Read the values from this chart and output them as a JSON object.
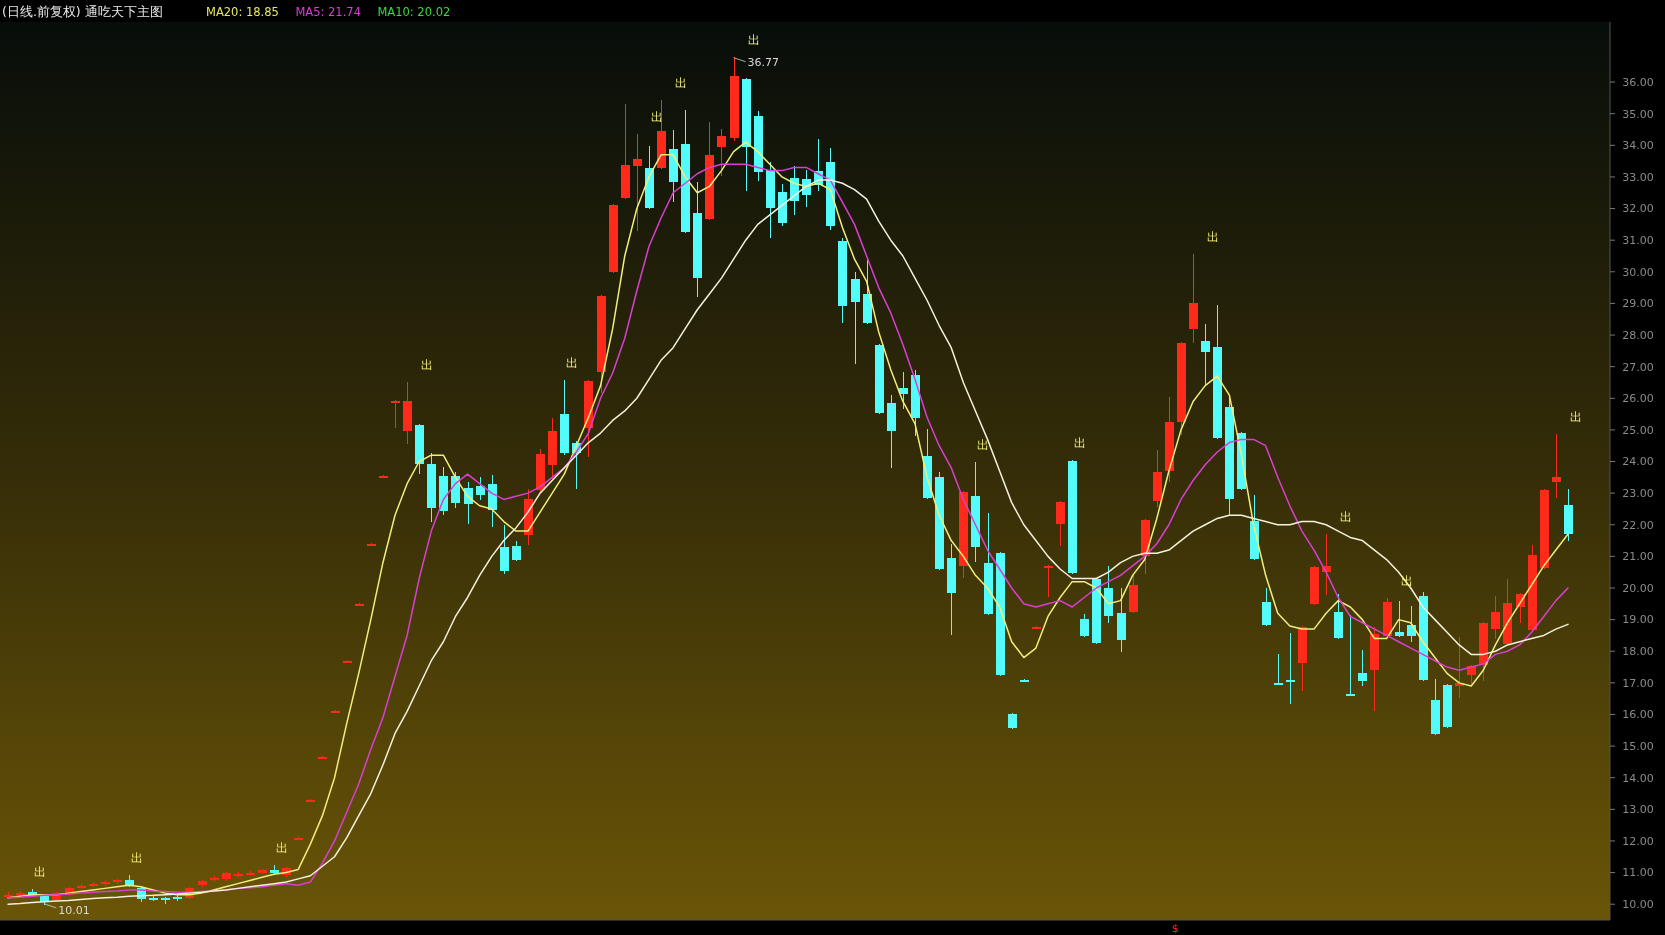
{
  "chart_data": {
    "type": "candlestick",
    "title": "(日线.前复权) 通吃天下主图",
    "categories": [
      null,
      null,
      null,
      null,
      null,
      null,
      null,
      null,
      null,
      null,
      null,
      null,
      null,
      null,
      null,
      null,
      null,
      null,
      null,
      null,
      null,
      null,
      null,
      null,
      null,
      null,
      null,
      null,
      null,
      null,
      null,
      null,
      null,
      null,
      null,
      null,
      null,
      null,
      null,
      null,
      null,
      null,
      null,
      null,
      null,
      null,
      null,
      null,
      null,
      null,
      null,
      null,
      null,
      null,
      null,
      null,
      null,
      null,
      null,
      null,
      null,
      null,
      null,
      null,
      null,
      null,
      null,
      null,
      null,
      null,
      null,
      null,
      null,
      null,
      null,
      null,
      null,
      null,
      null,
      null,
      null,
      null,
      null,
      null,
      null,
      null,
      null,
      null,
      null,
      null,
      null,
      null,
      null,
      null,
      null,
      null,
      null,
      null,
      null,
      null,
      null,
      null,
      null,
      null,
      null,
      null,
      null,
      null,
      null,
      null,
      null,
      null,
      null,
      null,
      null,
      null,
      null,
      null,
      null,
      null,
      null,
      null,
      null,
      null,
      null,
      null,
      null,
      null,
      null,
      null
    ],
    "ohlc": [
      [
        10.25,
        10.35,
        10.2,
        10.3
      ],
      [
        10.3,
        10.4,
        10.25,
        10.35
      ],
      [
        10.37,
        10.45,
        10.27,
        10.27
      ],
      [
        10.27,
        10.27,
        10.01,
        10.08
      ],
      [
        10.13,
        10.34,
        10.13,
        10.34
      ],
      [
        10.3,
        10.5,
        10.3,
        10.5
      ],
      [
        10.52,
        10.6,
        10.5,
        10.58
      ],
      [
        10.6,
        10.68,
        10.58,
        10.65
      ],
      [
        10.65,
        10.72,
        10.62,
        10.7
      ],
      [
        10.7,
        10.78,
        10.68,
        10.75
      ],
      [
        10.78,
        10.9,
        10.58,
        10.6
      ],
      [
        10.5,
        10.55,
        10.1,
        10.15
      ],
      [
        10.2,
        10.22,
        10.12,
        10.15
      ],
      [
        10.18,
        10.2,
        10.05,
        10.12
      ],
      [
        10.22,
        10.25,
        10.12,
        10.15
      ],
      [
        10.2,
        10.5,
        10.18,
        10.5
      ],
      [
        10.6,
        10.72,
        10.58,
        10.72
      ],
      [
        10.78,
        10.85,
        10.75,
        10.82
      ],
      [
        10.8,
        11.0,
        10.78,
        11.0
      ],
      [
        10.9,
        10.98,
        10.88,
        10.95
      ],
      [
        10.95,
        11.02,
        10.92,
        11.0
      ],
      [
        11.0,
        11.08,
        10.98,
        11.07
      ],
      [
        11.08,
        11.2,
        10.95,
        10.98
      ],
      [
        10.92,
        11.15,
        10.9,
        11.15
      ],
      [
        12.1,
        12.1,
        12.1,
        12.1
      ],
      [
        13.3,
        13.3,
        13.3,
        13.3
      ],
      [
        14.65,
        14.65,
        14.65,
        14.65
      ],
      [
        16.1,
        16.1,
        16.1,
        16.1
      ],
      [
        17.7,
        17.7,
        17.7,
        17.7
      ],
      [
        19.5,
        19.5,
        19.5,
        19.5
      ],
      [
        21.4,
        21.4,
        21.4,
        21.4
      ],
      [
        23.55,
        23.55,
        23.55,
        23.55
      ],
      [
        25.9,
        25.9,
        25.1,
        25.9
      ],
      [
        24.97,
        26.47,
        24.6,
        25.92
      ],
      [
        25.16,
        25.16,
        23.63,
        23.93
      ],
      [
        23.93,
        24.23,
        22.11,
        22.54
      ],
      [
        23.55,
        23.8,
        22.33,
        22.44
      ],
      [
        23.55,
        23.63,
        22.55,
        22.69
      ],
      [
        23.15,
        23.31,
        22.05,
        22.65
      ],
      [
        23.23,
        23.47,
        22.82,
        22.93
      ],
      [
        23.28,
        23.53,
        21.97,
        22.47
      ],
      [
        21.3,
        21.95,
        20.46,
        20.53
      ],
      [
        21.32,
        21.45,
        20.87,
        20.87
      ],
      [
        21.67,
        23.09,
        21.4,
        22.8
      ],
      [
        23.09,
        24.37,
        23.04,
        24.23
      ],
      [
        23.89,
        25.35,
        23.47,
        24.98
      ],
      [
        25.49,
        26.54,
        24.24,
        24.26
      ],
      [
        24.6,
        24.62,
        23.15,
        24.26
      ],
      [
        25.05,
        26.55,
        24.18,
        26.55
      ],
      [
        26.83,
        29.23,
        26.2,
        29.23
      ],
      [
        29.99,
        32.11,
        29.99,
        32.11
      ],
      [
        32.33,
        35.27,
        32.33,
        33.37
      ],
      [
        33.34,
        34.32,
        31.32,
        33.56
      ],
      [
        33.29,
        33.96,
        32.03,
        32.03
      ],
      [
        33.27,
        35.41,
        33.27,
        34.46
      ],
      [
        33.89,
        34.46,
        32.25,
        32.85
      ],
      [
        34.05,
        35.08,
        31.27,
        31.27
      ],
      [
        31.87,
        32.8,
        29.25,
        29.8
      ],
      [
        31.67,
        34.72,
        31.67,
        33.7
      ],
      [
        33.94,
        34.48,
        33.07,
        34.29
      ],
      [
        34.24,
        36.77,
        34.16,
        36.2
      ],
      [
        36.09,
        36.09,
        32.58,
        33.96
      ],
      [
        34.94,
        35.05,
        32.9,
        33.15
      ],
      [
        33.23,
        33.45,
        31.1,
        32.03
      ],
      [
        32.52,
        32.74,
        31.47,
        31.54
      ],
      [
        32.96,
        33.31,
        31.82,
        32.25
      ],
      [
        32.94,
        33.18,
        32.09,
        32.44
      ],
      [
        33.2,
        34.16,
        32.6,
        32.74
      ],
      [
        33.47,
        33.87,
        31.34,
        31.44
      ],
      [
        30.97,
        31.03,
        28.41,
        28.92
      ],
      [
        29.78,
        29.96,
        27.11,
        29.05
      ],
      [
        29.31,
        30.34,
        28.38,
        28.38
      ],
      [
        27.67,
        27.67,
        25.55,
        25.55
      ],
      [
        25.86,
        26.08,
        23.82,
        24.96
      ],
      [
        26.34,
        26.79,
        25.69,
        26.14
      ],
      [
        26.73,
        26.85,
        24.85,
        25.37
      ],
      [
        24.18,
        24.99,
        22.85,
        22.85
      ],
      [
        23.5,
        23.63,
        20.59,
        20.59
      ],
      [
        20.94,
        21.36,
        18.55,
        19.84
      ],
      [
        20.68,
        23.03,
        20.34,
        23.03
      ],
      [
        22.9,
        23.95,
        20.85,
        21.3
      ],
      [
        20.78,
        22.33,
        19.17,
        19.17
      ],
      [
        21.1,
        21.1,
        17.26,
        17.26
      ],
      [
        16.0,
        16.0,
        15.56,
        15.56
      ],
      [
        17.1,
        17.1,
        17.08,
        17.08
      ],
      [
        18.78,
        18.78,
        18.78,
        18.78
      ],
      [
        20.68,
        20.68,
        19.75,
        20.68
      ],
      [
        22.01,
        22.72,
        21.36,
        22.72
      ],
      [
        24.01,
        24.01,
        20.46,
        20.46
      ],
      [
        19.01,
        19.14,
        18.47,
        18.47
      ],
      [
        20.27,
        20.3,
        18.27,
        18.27
      ],
      [
        20.01,
        20.65,
        18.94,
        19.1
      ],
      [
        19.2,
        19.97,
        18.01,
        18.37
      ],
      [
        19.24,
        20.37,
        19.24,
        20.1
      ],
      [
        21.0,
        22.14,
        20.46,
        22.14
      ],
      [
        22.76,
        24.34,
        22.59,
        23.67
      ],
      [
        23.7,
        26.01,
        23.37,
        25.24
      ],
      [
        25.24,
        27.76,
        24.86,
        27.76
      ],
      [
        28.18,
        30.53,
        27.77,
        29.01
      ],
      [
        27.81,
        28.32,
        26.45,
        27.47
      ],
      [
        27.63,
        28.91,
        24.74,
        24.74
      ],
      [
        25.73,
        26.02,
        22.33,
        22.81
      ],
      [
        24.9,
        24.9,
        23.13,
        23.13
      ],
      [
        22.12,
        22.92,
        20.92,
        20.92
      ],
      [
        19.55,
        19.98,
        18.82,
        18.82
      ],
      [
        17.0,
        17.89,
        16.98,
        16.98
      ],
      [
        17.08,
        18.53,
        16.36,
        17.06
      ],
      [
        17.62,
        18.78,
        16.77,
        18.78
      ],
      [
        19.49,
        20.67,
        19.49,
        20.67
      ],
      [
        20.5,
        21.69,
        19.82,
        20.71
      ],
      [
        19.23,
        19.79,
        18.43,
        18.43
      ],
      [
        16.66,
        19.12,
        16.64,
        16.64
      ],
      [
        17.3,
        18.0,
        16.93,
        17.06
      ],
      [
        17.41,
        18.75,
        16.15,
        18.53
      ],
      [
        18.48,
        19.66,
        18.48,
        19.55
      ],
      [
        18.61,
        19.55,
        18.48,
        18.48
      ],
      [
        18.82,
        19.39,
        18.32,
        18.48
      ],
      [
        19.74,
        19.85,
        17.09,
        17.09
      ],
      [
        16.45,
        17.09,
        15.38,
        15.38
      ],
      [
        16.93,
        16.93,
        15.59,
        15.59
      ],
      [
        16.91,
        18.43,
        16.56,
        17.01
      ],
      [
        17.25,
        17.54,
        17.0,
        17.54
      ],
      [
        17.57,
        18.89,
        17.09,
        18.89
      ],
      [
        18.69,
        19.71,
        18.43,
        19.23
      ],
      [
        18.22,
        20.24,
        18.22,
        19.52
      ],
      [
        19.39,
        19.82,
        18.91,
        19.82
      ],
      [
        18.66,
        21.32,
        18.66,
        21.03
      ],
      [
        20.62,
        23.1,
        20.62,
        23.1
      ],
      [
        23.35,
        24.84,
        22.87,
        23.51
      ],
      [
        22.63,
        23.1,
        21.53,
        21.71
      ]
    ],
    "value_labels": [
      null,
      null,
      "出",
      null,
      null,
      null,
      null,
      null,
      null,
      null,
      "出",
      null,
      null,
      null,
      null,
      null,
      null,
      null,
      null,
      null,
      null,
      null,
      "出",
      null,
      null,
      null,
      null,
      null,
      null,
      null,
      null,
      null,
      null,
      null,
      "出",
      null,
      null,
      null,
      null,
      null,
      null,
      null,
      null,
      null,
      null,
      null,
      "出",
      null,
      null,
      null,
      null,
      null,
      null,
      "出",
      null,
      "出",
      null,
      null,
      null,
      null,
      null,
      "出",
      null,
      null,
      null,
      null,
      null,
      null,
      null,
      null,
      null,
      null,
      null,
      null,
      null,
      null,
      null,
      null,
      null,
      null,
      "出",
      null,
      null,
      null,
      null,
      null,
      null,
      null,
      "出",
      null,
      null,
      null,
      null,
      null,
      null,
      null,
      null,
      null,
      null,
      "出",
      null,
      null,
      null,
      null,
      null,
      null,
      null,
      null,
      null,
      null,
      "出",
      null,
      null,
      null,
      null,
      "出",
      null,
      null,
      null,
      null,
      null,
      null,
      null,
      null,
      null,
      null,
      null,
      null,
      null,
      "出"
    ],
    "series": [
      {
        "type": "line",
        "color": "#f2ee7a",
        "values": [
          10.2,
          10.25,
          10.3,
          10.3,
          10.3,
          10.35,
          10.4,
          10.45,
          10.5,
          10.55,
          10.6,
          10.55,
          10.45,
          10.35,
          10.3,
          10.3,
          10.35,
          10.45,
          10.55,
          10.65,
          10.75,
          10.85,
          10.95,
          11.0,
          11.1,
          11.9,
          12.8,
          14.0,
          15.7,
          17.3,
          19.0,
          20.8,
          22.3,
          23.3,
          24.0,
          24.2,
          24.2,
          23.5,
          22.9,
          22.6,
          22.5,
          22.1,
          21.8,
          21.8,
          22.4,
          23.0,
          23.6,
          24.5,
          25.4,
          26.4,
          28.2,
          30.5,
          32.0,
          33.0,
          33.7,
          33.7,
          33.0,
          32.5,
          32.7,
          33.2,
          33.8,
          34.1,
          33.8,
          33.4,
          33.0,
          32.8,
          32.7,
          32.8,
          32.6,
          31.4,
          30.4,
          29.7,
          28.1,
          26.9,
          25.9,
          25.2,
          23.5,
          22.3,
          21.5,
          21.0,
          20.4,
          20.0,
          19.4,
          18.3,
          17.8,
          18.1,
          19.1,
          19.7,
          20.2,
          20.2,
          20.0,
          19.5,
          19.6,
          20.4,
          20.9,
          22.2,
          23.7,
          25.0,
          25.9,
          26.4,
          26.7,
          26.1,
          24.2,
          22.0,
          20.4,
          19.2,
          18.8,
          18.7,
          18.7,
          19.2,
          19.6,
          19.4,
          19.0,
          18.4,
          18.4,
          19.0,
          18.9,
          18.3,
          17.8,
          17.3,
          17.0,
          16.9,
          17.4,
          18.2,
          18.9,
          19.5,
          20.1,
          20.7,
          21.2,
          21.7
        ]
      },
      {
        "type": "line",
        "color": "#d93fd0",
        "values": [
          10.2,
          10.22,
          10.25,
          10.28,
          10.3,
          10.32,
          10.35,
          10.38,
          10.4,
          10.42,
          10.45,
          10.45,
          10.42,
          10.4,
          10.38,
          10.38,
          10.4,
          10.42,
          10.45,
          10.5,
          10.52,
          10.55,
          10.6,
          10.65,
          10.6,
          10.7,
          11.3,
          12.0,
          12.9,
          13.8,
          14.9,
          15.9,
          17.2,
          18.5,
          20.3,
          21.8,
          22.8,
          23.3,
          23.6,
          23.3,
          23.0,
          22.8,
          22.9,
          23.0,
          23.2,
          23.5,
          23.8,
          24.3,
          24.9,
          26.0,
          26.8,
          27.9,
          29.4,
          30.8,
          31.7,
          32.5,
          32.8,
          33.1,
          33.3,
          33.4,
          33.4,
          33.4,
          33.3,
          33.2,
          33.2,
          33.3,
          33.3,
          33.1,
          32.9,
          32.2,
          31.5,
          30.5,
          29.5,
          28.7,
          27.7,
          26.6,
          25.4,
          24.5,
          23.8,
          22.8,
          22.0,
          21.2,
          20.6,
          20.0,
          19.5,
          19.4,
          19.5,
          19.6,
          19.4,
          19.7,
          20.0,
          20.2,
          20.4,
          20.7,
          21.0,
          21.4,
          22.0,
          22.8,
          23.4,
          23.9,
          24.3,
          24.6,
          24.7,
          24.7,
          24.5,
          23.5,
          22.6,
          21.8,
          21.2,
          20.5,
          19.7,
          19.1,
          18.9,
          18.7,
          18.5,
          18.3,
          18.1,
          17.9,
          17.7,
          17.5,
          17.4,
          17.5,
          17.6,
          17.9,
          18.0,
          18.2,
          18.6,
          19.1,
          19.6,
          20.0
        ]
      },
      {
        "type": "line",
        "color": "#f4f1dc",
        "values": [
          10.0,
          10.02,
          10.05,
          10.08,
          10.1,
          10.12,
          10.15,
          10.18,
          10.2,
          10.22,
          10.25,
          10.27,
          10.28,
          10.3,
          10.32,
          10.35,
          10.38,
          10.42,
          10.45,
          10.5,
          10.55,
          10.6,
          10.65,
          10.7,
          10.8,
          10.9,
          11.2,
          11.5,
          12.1,
          12.8,
          13.5,
          14.4,
          15.4,
          16.1,
          16.9,
          17.7,
          18.3,
          19.1,
          19.7,
          20.4,
          21.0,
          21.5,
          21.9,
          22.4,
          23.0,
          23.4,
          23.8,
          24.2,
          24.6,
          24.9,
          25.3,
          25.6,
          26.0,
          26.6,
          27.2,
          27.6,
          28.2,
          28.8,
          29.3,
          29.8,
          30.4,
          31.0,
          31.5,
          31.8,
          32.1,
          32.4,
          32.7,
          32.9,
          32.9,
          32.8,
          32.6,
          32.3,
          31.6,
          31.0,
          30.5,
          29.8,
          29.1,
          28.3,
          27.6,
          26.5,
          25.6,
          24.7,
          23.7,
          22.7,
          22.0,
          21.5,
          21.0,
          20.6,
          20.3,
          20.3,
          20.3,
          20.5,
          20.8,
          21.0,
          21.1,
          21.1,
          21.2,
          21.5,
          21.8,
          22.0,
          22.2,
          22.3,
          22.3,
          22.2,
          22.1,
          22.0,
          22.0,
          22.1,
          22.1,
          22.0,
          21.8,
          21.6,
          21.5,
          21.2,
          20.9,
          20.5,
          20.0,
          19.4,
          19.0,
          18.6,
          18.2,
          17.9,
          17.9,
          18.0,
          18.2,
          18.3,
          18.4,
          18.5,
          18.7,
          18.85
        ]
      }
    ],
    "ylim": [
      9.5,
      37.9
    ],
    "yticks": [
      {
        "value": 10,
        "label": "10.00"
      },
      {
        "value": 11,
        "label": "11.00"
      },
      {
        "value": 12,
        "label": "12.00"
      },
      {
        "value": 13,
        "label": "13.00"
      },
      {
        "value": 14,
        "label": "14.00"
      },
      {
        "value": 15,
        "label": "15.00"
      },
      {
        "value": 16,
        "label": "16.00"
      },
      {
        "value": 17,
        "label": "17.00"
      },
      {
        "value": 18,
        "label": "18.00"
      },
      {
        "value": 19,
        "label": "19.00"
      },
      {
        "value": 20,
        "label": "20.00"
      },
      {
        "value": 21,
        "label": "21.00"
      },
      {
        "value": 22,
        "label": "22.00"
      },
      {
        "value": 23,
        "label": "23.00"
      },
      {
        "value": 24,
        "label": "24.00"
      },
      {
        "value": 25,
        "label": "25.00"
      },
      {
        "value": 26,
        "label": "26.00"
      },
      {
        "value": 27,
        "label": "27.00"
      },
      {
        "value": 28,
        "label": "28.00"
      },
      {
        "value": 29,
        "label": "29.00"
      },
      {
        "value": 30,
        "label": "30.00"
      },
      {
        "value": 31,
        "label": "31.00"
      },
      {
        "value": 32,
        "label": "32.00"
      },
      {
        "value": 33,
        "label": "33.00"
      },
      {
        "value": 34,
        "label": "34.00"
      },
      {
        "value": 35,
        "label": "35.00"
      },
      {
        "value": 36,
        "label": "36.00"
      }
    ],
    "annotations": [
      "MA20: 18.85",
      "MA5: 21.74",
      "MA10: 20.02",
      "36.77",
      "10.01",
      "$"
    ]
  }
}
